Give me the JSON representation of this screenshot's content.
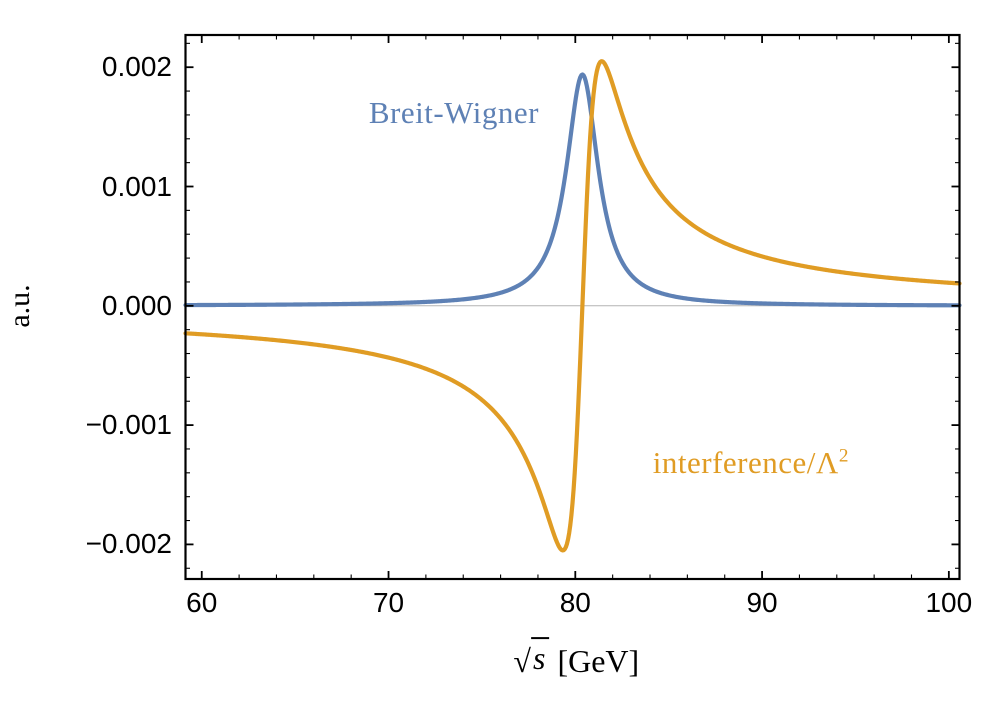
{
  "chart_data": {
    "type": "line",
    "title": "",
    "ylabel": "a.u.",
    "xlabel": {
      "radical": "√",
      "variable": "s",
      "unit": "[GeV]",
      "display": "√s [GeV]"
    },
    "xlim": [
      59.13,
      100.57
    ],
    "ylim": [
      -0.00229,
      0.00227
    ],
    "grid": false,
    "legend": "inline-annotations",
    "frame_color": "#000000",
    "zero_line_color": "#b3b3b3",
    "tick_label_color": "#000000",
    "xticks": {
      "major": [
        60,
        70,
        80,
        90,
        100
      ],
      "labels": [
        "60",
        "70",
        "80",
        "90",
        "100"
      ],
      "minor": [
        62,
        64,
        66,
        68,
        72,
        74,
        76,
        78,
        82,
        84,
        86,
        88,
        92,
        94,
        96,
        98
      ]
    },
    "yticks": {
      "major": [
        0.002,
        0.001,
        0,
        -0.001,
        -0.002
      ],
      "labels": [
        "0.002",
        "0.001",
        "0.000",
        "−0.001",
        "−0.002"
      ],
      "minor": [
        -0.0022,
        -0.0018,
        -0.0016,
        -0.0014,
        -0.0012,
        -0.0008,
        -0.0006,
        -0.0004,
        -0.0002,
        0.0002,
        0.0004,
        0.0006,
        0.0008,
        0.0012,
        0.0014,
        0.0016,
        0.0018,
        0.0022
      ]
    },
    "series": [
      {
        "id": "breit-wigner",
        "name": "Breit-Wigner",
        "color": "#5e81b5",
        "line_width": 4.2,
        "model": {
          "type": "breit_wigner",
          "mass": 80.38,
          "width": 2.08,
          "amplitude": 54.2
        },
        "points": [
          [
            60,
            6.6e-06
          ],
          [
            62,
            7.9e-06
          ],
          [
            64,
            9.6e-06
          ],
          [
            66,
            1.2e-05
          ],
          [
            68,
            1.6e-05
          ],
          [
            70,
            2.2e-05
          ],
          [
            72,
            3.3e-05
          ],
          [
            74,
            5.4e-05
          ],
          [
            76,
            0.00011
          ],
          [
            77,
            0.00017
          ],
          [
            78,
            0.00032
          ],
          [
            79,
            0.00071
          ],
          [
            79.5,
            0.00113
          ],
          [
            80,
            0.00171
          ],
          [
            80.38,
            0.00194
          ],
          [
            80.5,
            0.00191
          ],
          [
            81,
            0.00143
          ],
          [
            81.4,
            0.00097
          ],
          [
            82,
            0.00056
          ],
          [
            83,
            0.00026
          ],
          [
            84,
            0.00014
          ],
          [
            85,
            8.9e-05
          ],
          [
            86,
            6e-05
          ],
          [
            88,
            3.2e-05
          ],
          [
            90,
            2e-05
          ],
          [
            92,
            1.3e-05
          ],
          [
            94,
            9.6e-06
          ],
          [
            96,
            7.1e-06
          ],
          [
            98,
            5.5e-06
          ],
          [
            100,
            4.3e-06
          ]
        ]
      },
      {
        "id": "interference",
        "name": "interference/Λ²",
        "color": "#e09c24",
        "line_width": 4.2,
        "model": {
          "type": "interference",
          "mass": 80.38,
          "width": 2.08,
          "amplitude": 0.6856
        },
        "points": [
          [
            60,
            -0.00024
          ],
          [
            62,
            -0.00026
          ],
          [
            64,
            -0.00029
          ],
          [
            66,
            -0.00032
          ],
          [
            68,
            -0.00037
          ],
          [
            70,
            -0.00043
          ],
          [
            72,
            -0.00053
          ],
          [
            74,
            -0.00068
          ],
          [
            76,
            -0.00094
          ],
          [
            77,
            -0.00117
          ],
          [
            78,
            -0.00152
          ],
          [
            79,
            -0.00198
          ],
          [
            79.33,
            -0.00205
          ],
          [
            79.5,
            -0.00202
          ],
          [
            80,
            -0.00132
          ],
          [
            80.38,
            0
          ],
          [
            80.5,
            0.00047
          ],
          [
            81,
            0.00181
          ],
          [
            81.41,
            0.00205
          ],
          [
            82,
            0.00186
          ],
          [
            83,
            0.00139
          ],
          [
            84,
            0.00107
          ],
          [
            85,
            0.00086
          ],
          [
            86,
            0.00071
          ],
          [
            88,
            0.00053
          ],
          [
            90,
            0.00041
          ],
          [
            92,
            0.00034
          ],
          [
            94,
            0.00029
          ],
          [
            96,
            0.00025
          ],
          [
            98,
            0.00022
          ],
          [
            100,
            0.00019
          ]
        ]
      }
    ],
    "annotations": [
      {
        "id": "bw",
        "text": "Breit-Wigner",
        "sup": "",
        "color": "#5e81b5",
        "x": 73.5,
        "y": 0.00162
      },
      {
        "id": "int",
        "text": "interference/Λ",
        "sup": "2",
        "color": "#e09c24",
        "x": 89.4,
        "y": -0.00132
      }
    ]
  }
}
